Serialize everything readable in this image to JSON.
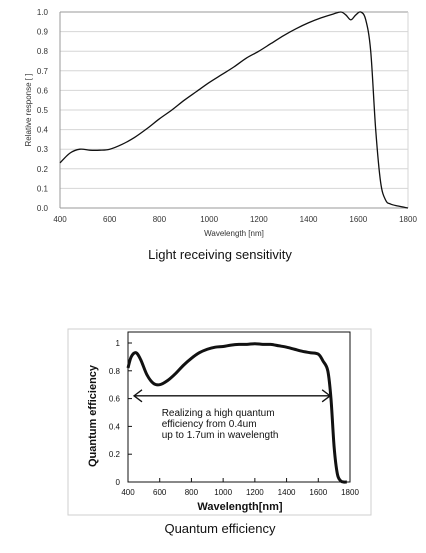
{
  "chart_data": [
    {
      "type": "line",
      "title": "Light receiving sensitivity",
      "xlabel": "Wavelength [nm]",
      "ylabel": "Relative response [ ]",
      "xlim": [
        400,
        1800
      ],
      "ylim": [
        0,
        1.0
      ],
      "grid": "horizontal",
      "x_ticks": [
        "400",
        "600",
        "800",
        "1000",
        "1200",
        "1400",
        "1600",
        "1800"
      ],
      "y_ticks": [
        "0.0",
        "0.1",
        "0.2",
        "0.3",
        "0.4",
        "0.5",
        "0.6",
        "0.7",
        "0.8",
        "0.9",
        "1.0"
      ],
      "series": [
        {
          "x": [
            400,
            440,
            480,
            520,
            560,
            600,
            650,
            700,
            750,
            800,
            850,
            900,
            950,
            1000,
            1050,
            1100,
            1150,
            1200,
            1250,
            1300,
            1350,
            1400,
            1450,
            1500,
            1530,
            1550,
            1570,
            1590,
            1610,
            1630,
            1650,
            1670,
            1690,
            1710,
            1730,
            1760,
            1800
          ],
          "y": [
            0.23,
            0.28,
            0.3,
            0.295,
            0.295,
            0.3,
            0.325,
            0.36,
            0.405,
            0.455,
            0.5,
            0.55,
            0.595,
            0.64,
            0.68,
            0.72,
            0.765,
            0.8,
            0.84,
            0.88,
            0.915,
            0.945,
            0.97,
            0.99,
            1.0,
            0.985,
            0.96,
            0.985,
            1.0,
            0.96,
            0.8,
            0.4,
            0.13,
            0.04,
            0.02,
            0.01,
            0.0
          ]
        }
      ]
    },
    {
      "type": "line",
      "title": "Quantum efficiency",
      "xlabel": "Wavelength[nm]",
      "ylabel": "Quantum efficiency",
      "xlim": [
        400,
        1800
      ],
      "ylim": [
        0,
        1
      ],
      "grid": "none",
      "x_ticks": [
        "400",
        "600",
        "800",
        "1000",
        "1200",
        "1400",
        "1600",
        "1800"
      ],
      "y_ticks": [
        "0",
        "0.2",
        "0.4",
        "0.6",
        "0.8",
        "1"
      ],
      "annotation": {
        "text": [
          "Realizing a high quantum",
          "efficiency from 0.4um",
          "up to 1.7um in wavelength"
        ],
        "arrow_from": 400,
        "arrow_to": 1700
      },
      "series": [
        {
          "x": [
            400,
            420,
            450,
            480,
            520,
            560,
            600,
            650,
            700,
            750,
            800,
            850,
            900,
            950,
            1000,
            1050,
            1100,
            1150,
            1200,
            1250,
            1300,
            1350,
            1400,
            1450,
            1500,
            1550,
            1600,
            1630,
            1660,
            1680,
            1700,
            1720,
            1740,
            1760,
            1780
          ],
          "y": [
            0.82,
            0.9,
            0.93,
            0.88,
            0.77,
            0.71,
            0.7,
            0.73,
            0.78,
            0.84,
            0.89,
            0.93,
            0.955,
            0.97,
            0.975,
            0.985,
            0.99,
            0.99,
            0.995,
            0.99,
            0.99,
            0.98,
            0.97,
            0.955,
            0.94,
            0.93,
            0.92,
            0.87,
            0.8,
            0.6,
            0.25,
            0.06,
            0.01,
            0.0,
            0.0
          ]
        }
      ]
    }
  ]
}
